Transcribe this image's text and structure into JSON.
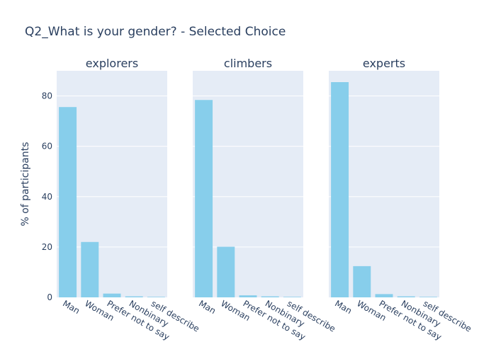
{
  "chart_data": {
    "type": "bar",
    "title": "Q2_What is your gender? - Selected Choice",
    "ylabel": "% of participants",
    "ylim": [
      0,
      90
    ],
    "yticks": [
      0,
      20,
      40,
      60,
      80
    ],
    "grid": true,
    "legend": "none",
    "bar_color": "#87CEEB",
    "plot_bg": "#E5ECF6",
    "categories": [
      "Man",
      "Woman",
      "Prefer not to say",
      "Nonbinary",
      "self describe"
    ],
    "series": [
      {
        "name": "explorers",
        "values": [
          75.6,
          22.0,
          1.5,
          0.4,
          0.2
        ]
      },
      {
        "name": "climbers",
        "values": [
          78.4,
          20.1,
          0.8,
          0.4,
          0.2
        ]
      },
      {
        "name": "experts",
        "values": [
          85.5,
          12.4,
          1.3,
          0.4,
          0.2
        ]
      }
    ]
  }
}
